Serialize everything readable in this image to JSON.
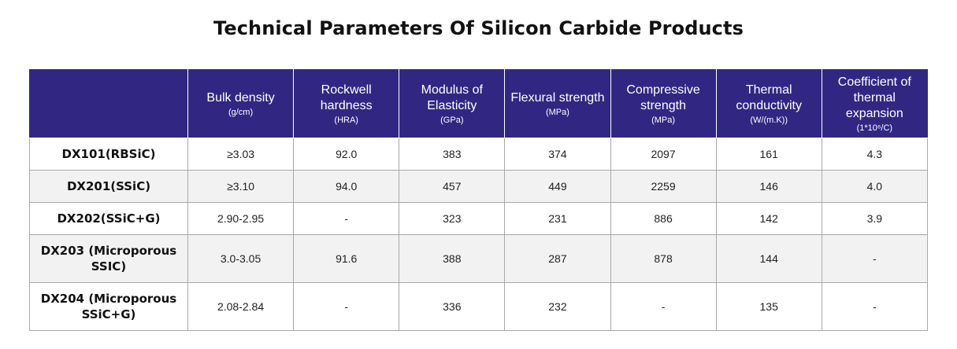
{
  "title": "Technical Parameters Of Silicon Carbide Products",
  "table": {
    "headers": [
      {
        "label": "",
        "unit": ""
      },
      {
        "label": "Bulk density",
        "unit": "(g/cm)"
      },
      {
        "label": "Rockwell hardness",
        "unit": "(HRA)"
      },
      {
        "label": "Modulus of Elasticity",
        "unit": "(GPa)"
      },
      {
        "label": "Flexural strength",
        "unit": "(MPa)"
      },
      {
        "label": "Compressive strength",
        "unit": "(MPa)"
      },
      {
        "label": "Thermal conductivity",
        "unit": "(W/(m.K))"
      },
      {
        "label": "Coefficient of thermal expansion",
        "unit": "(1*10⁶/C)"
      }
    ],
    "rows": [
      {
        "name": "DX101(RBSiC)",
        "values": [
          "≥3.03",
          "92.0",
          "383",
          "374",
          "2097",
          "161",
          "4.3"
        ]
      },
      {
        "name": "DX201(SSiC)",
        "values": [
          "≥3.10",
          "94.0",
          "457",
          "449",
          "2259",
          "146",
          "4.0"
        ]
      },
      {
        "name": "DX202(SSiC+G)",
        "values": [
          "2.90-2.95",
          "-",
          "323",
          "231",
          "886",
          "142",
          "3.9"
        ]
      },
      {
        "name": "DX203 (Microporous SSIC)",
        "values": [
          "3.0-3.05",
          "91.6",
          "388",
          "287",
          "878",
          "144",
          "-"
        ]
      },
      {
        "name": "DX204 (Microporous SSiC+G)",
        "values": [
          "2.08-2.84",
          "-",
          "336",
          "232",
          "-",
          "135",
          "-"
        ]
      }
    ]
  },
  "colors": {
    "header_bg": "#312783",
    "header_text": "#ffffff",
    "alt_row_bg": "#f2f2f2",
    "grid": "#a9a9a9"
  }
}
